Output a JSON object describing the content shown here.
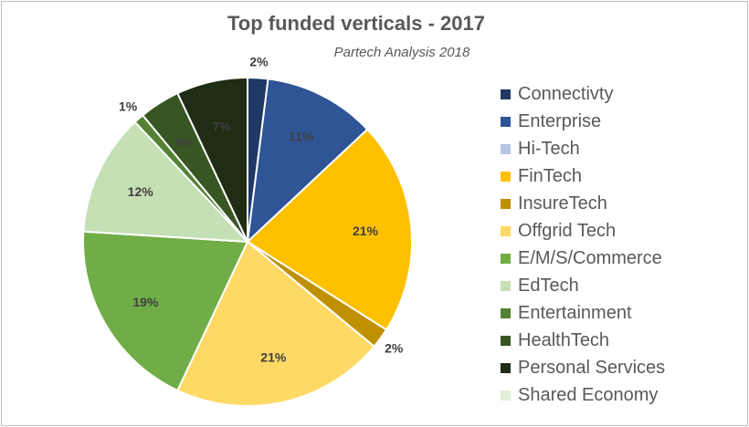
{
  "chart_data": {
    "type": "pie",
    "title": "Top funded verticals - 2017",
    "subtitle": "Partech Analysis 2018",
    "legend_position": "right",
    "slices": [
      {
        "label": "Connectivty",
        "value": 2,
        "value_label": "2%",
        "color": "#1f3864"
      },
      {
        "label": "Enterprise",
        "value": 11,
        "value_label": "11%",
        "color": "#2f5597"
      },
      {
        "label": "Hi-Tech",
        "value": 0,
        "value_label": "",
        "color": "#b4c7e7"
      },
      {
        "label": "FinTech",
        "value": 21,
        "value_label": "21%",
        "color": "#ffc000"
      },
      {
        "label": "InsureTech",
        "value": 2,
        "value_label": "2%",
        "color": "#bf9000"
      },
      {
        "label": "Offgrid Tech",
        "value": 21,
        "value_label": "21%",
        "color": "#ffd966"
      },
      {
        "label": "E/M/S/Commerce",
        "value": 19,
        "value_label": "19%",
        "color": "#70ad47"
      },
      {
        "label": "EdTech",
        "value": 12,
        "value_label": "12%",
        "color": "#c5e0b4"
      },
      {
        "label": "Entertainment",
        "value": 1,
        "value_label": "1%",
        "color": "#548235"
      },
      {
        "label": "HealthTech",
        "value": 4,
        "value_label": "4%",
        "color": "#375623"
      },
      {
        "label": "Personal Services",
        "value": 7,
        "value_label": "7%",
        "color": "#1e2d14"
      },
      {
        "label": "Shared Economy",
        "value": 0,
        "value_label": "",
        "color": "#e2efda"
      }
    ]
  }
}
